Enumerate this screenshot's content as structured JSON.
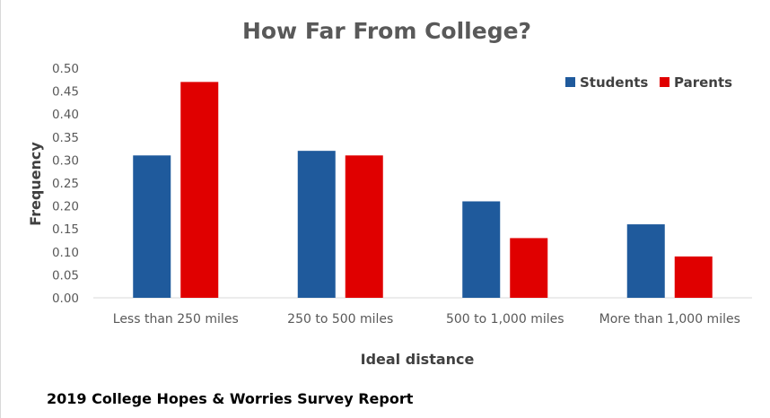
{
  "chart_data": {
    "type": "bar",
    "title": "How Far From College?",
    "xlabel": "Ideal distance",
    "ylabel": "Frequency",
    "categories": [
      "Less than 250 miles",
      "250 to 500 miles",
      "500 to 1,000 miles",
      "More than 1,000 miles"
    ],
    "series": [
      {
        "name": "Students",
        "color": "#1F5A9C",
        "values": [
          0.31,
          0.32,
          0.21,
          0.16
        ]
      },
      {
        "name": "Parents",
        "color": "#E00000",
        "values": [
          0.47,
          0.31,
          0.13,
          0.09
        ]
      }
    ],
    "ylim": [
      0,
      0.5
    ],
    "yticks": [
      "0.00",
      "0.05",
      "0.10",
      "0.15",
      "0.20",
      "0.25",
      "0.30",
      "0.35",
      "0.40",
      "0.45",
      "0.50"
    ],
    "grid": false,
    "legend_position": "top-right"
  },
  "footer": {
    "source": "2019 College Hopes & Worries Survey Report"
  }
}
